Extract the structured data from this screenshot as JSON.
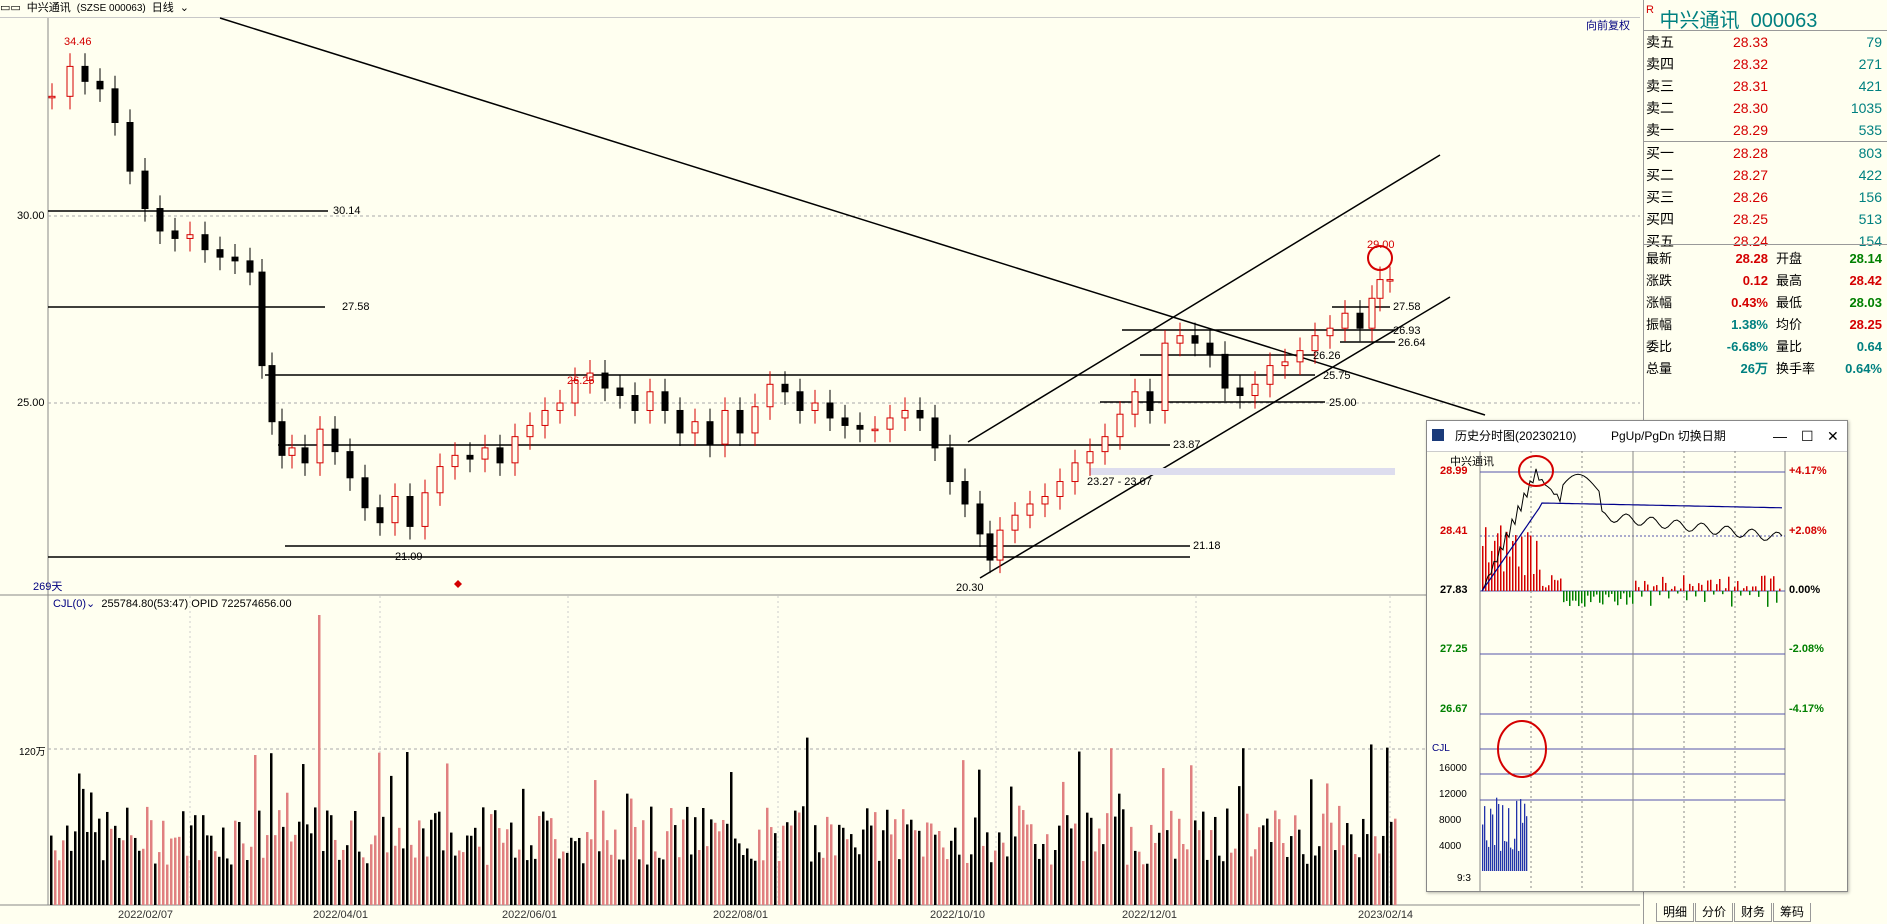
{
  "header": {
    "icon_text": "▭▭",
    "stock": "中兴通讯",
    "code": "(SZSE 000063)",
    "period": "日线",
    "reinstate": "向前复权"
  },
  "chart": {
    "y_ticks": [
      "30.00",
      "25.00"
    ],
    "vol_tick": "120万",
    "days": "269天",
    "x_labels": [
      "2022/02/07",
      "2022/04/01",
      "2022/06/01",
      "2022/08/01",
      "2022/10/10",
      "2022/12/01",
      "2023/02/14"
    ],
    "annotations": {
      "high": "34.46",
      "mid_high": "26.25",
      "low1": "21.09",
      "low2": "20.30",
      "peak": "29.00",
      "l30_14": "30.14",
      "l27_58a": "27.58",
      "l27_58b": "27.58",
      "l26_93": "26.93",
      "l26_64": "26.64",
      "l26_26": "26.26",
      "l25_75": "25.75",
      "l25_00": "25.00",
      "l23_87": "23.87",
      "l23_range": "23.27 - 23.07",
      "l21_18": "21.18"
    },
    "indicator_line": "CJL(0)",
    "indicator_values": "255784.80(53:47)  OPID 722574656.00"
  },
  "chart_data": {
    "type": "candlestick",
    "title": "中兴通讯 (SZSE 000063) 日线",
    "ylim": [
      20,
      35
    ],
    "x_ticks": [
      "2022/02/07",
      "2022/04/01",
      "2022/06/01",
      "2022/08/01",
      "2022/10/10",
      "2022/12/01",
      "2023/02/14"
    ],
    "points_of_note": [
      {
        "label": "34.46",
        "value": 34.46
      },
      {
        "label": "26.25",
        "value": 26.25
      },
      {
        "label": "21.09",
        "value": 21.09
      },
      {
        "label": "20.30",
        "value": 20.3
      },
      {
        "label": "29.00",
        "value": 29.0
      }
    ],
    "horizontal_levels": [
      30.14,
      27.58,
      26.93,
      26.64,
      26.26,
      25.75,
      25.0,
      23.87,
      21.18
    ]
  },
  "quote": {
    "name": "中兴通讯",
    "code": "000063",
    "asks": [
      {
        "label": "卖五",
        "price": "28.33",
        "vol": "79"
      },
      {
        "label": "卖四",
        "price": "28.32",
        "vol": "271"
      },
      {
        "label": "卖三",
        "price": "28.31",
        "vol": "421"
      },
      {
        "label": "卖二",
        "price": "28.30",
        "vol": "1035"
      },
      {
        "label": "卖一",
        "price": "28.29",
        "vol": "535"
      }
    ],
    "bids": [
      {
        "label": "买一",
        "price": "28.28",
        "vol": "803"
      },
      {
        "label": "买二",
        "price": "28.27",
        "vol": "422"
      },
      {
        "label": "买三",
        "price": "28.26",
        "vol": "156"
      },
      {
        "label": "买四",
        "price": "28.25",
        "vol": "513"
      },
      {
        "label": "买五",
        "price": "28.24",
        "vol": "154"
      }
    ],
    "stats": [
      {
        "l1": "最新",
        "v1": "28.28",
        "c1": "red",
        "l2": "开盘",
        "v2": "28.14",
        "c2": "green"
      },
      {
        "l1": "涨跌",
        "v1": "0.12",
        "c1": "red",
        "l2": "最高",
        "v2": "28.42",
        "c2": "red"
      },
      {
        "l1": "涨幅",
        "v1": "0.43%",
        "c1": "red",
        "l2": "最低",
        "v2": "28.03",
        "c2": "green"
      },
      {
        "l1": "振幅",
        "v1": "1.38%",
        "c1": "teal",
        "l2": "均价",
        "v2": "28.25",
        "c2": "red"
      },
      {
        "l1": "委比",
        "v1": "-6.68%",
        "c1": "teal",
        "l2": "量比",
        "v2": "0.64",
        "c2": "teal"
      },
      {
        "l1": "总量",
        "v1": "26万",
        "c1": "teal",
        "l2": "换手率",
        "v2": "0.64%",
        "c2": "teal"
      }
    ]
  },
  "popup": {
    "title": "历史分时图(20230210)",
    "hint": "PgUp/PgDn 切换日期",
    "stock": "中兴通讯",
    "left_ticks": [
      "28.99",
      "28.41",
      "27.83",
      "27.25",
      "26.67"
    ],
    "right_ticks": [
      "+4.17%",
      "+2.08%",
      "0.00%",
      "-2.08%",
      "-4.17%"
    ],
    "vol_label": "CJL",
    "vol_ticks": [
      "16000",
      "12000",
      "8000",
      "4000"
    ],
    "time_start": "9:3"
  },
  "tabs": [
    "明细",
    "分价",
    "财务",
    "筹码"
  ],
  "colors": {
    "up": "#d40000",
    "down": "#008000",
    "bg": "#fffff0"
  }
}
